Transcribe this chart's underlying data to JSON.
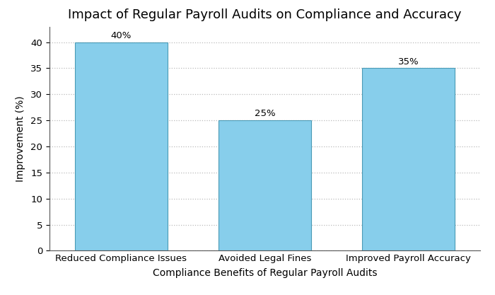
{
  "title": "Impact of Regular Payroll Audits on Compliance and Accuracy",
  "xlabel": "Compliance Benefits of Regular Payroll Audits",
  "ylabel": "Improvement (%)",
  "categories": [
    "Reduced Compliance Issues",
    "Avoided Legal Fines",
    "Improved Payroll Accuracy"
  ],
  "values": [
    40,
    25,
    35
  ],
  "bar_color": "#87CEEB",
  "bar_edgecolor": "#4a9ab5",
  "bar_width": 0.65,
  "ylim": [
    0,
    43
  ],
  "yticks": [
    0,
    5,
    10,
    15,
    20,
    25,
    30,
    35,
    40
  ],
  "label_fontsize": 9.5,
  "title_fontsize": 13,
  "axis_label_fontsize": 10,
  "annotation_fontsize": 9.5,
  "background_color": "#ffffff",
  "grid_color": "#bbbbbb",
  "grid_linestyle": ":"
}
